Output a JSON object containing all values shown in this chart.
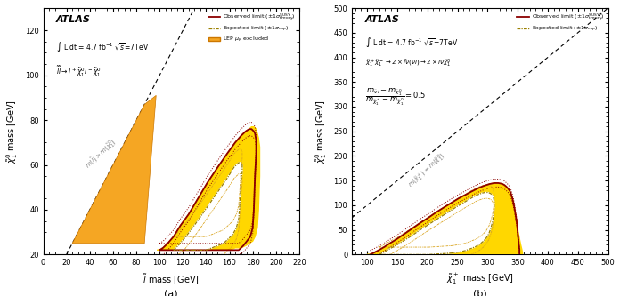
{
  "panel_a": {
    "xlim": [
      0,
      220
    ],
    "ylim": [
      20,
      130
    ],
    "xticks": [
      0,
      20,
      40,
      60,
      80,
      100,
      120,
      140,
      160,
      180,
      200,
      220
    ],
    "yticks": [
      20,
      40,
      60,
      80,
      100,
      120
    ],
    "xlabel": "$\\tilde{l}$ mass [GeV]",
    "ylabel": "$\\tilde{\\chi}_1^0$ mass [GeV]",
    "atlas_text": "ATLAS",
    "lumi_text": "$\\int$ L dt = 4.7 fb$^{-1}$ $\\sqrt{s}$=7TeV",
    "process_text": "$\\tilde{l}\\tilde{l} \\rightarrow l^+ \\tilde{\\chi}_1^0 l^- \\tilde{\\chi}_1^0$",
    "diagonal_label": "$m(\\tilde{l}) > m(\\tilde{\\chi}_1^0)$",
    "lep_color": "#F5A623",
    "obs_color": "#8B0000",
    "yellow_color": "#FFD700",
    "label_a": "(a)",
    "lep_x": [
      25,
      87,
      97,
      87,
      25
    ],
    "lep_y": [
      25,
      25,
      91,
      87,
      25
    ],
    "obs_x_top": [
      100,
      103,
      107,
      112,
      118,
      125,
      133,
      141,
      150,
      158,
      165,
      170,
      174,
      177,
      179,
      181,
      182,
      183,
      183,
      182
    ],
    "obs_y_top": [
      22,
      23,
      25,
      28,
      33,
      38,
      45,
      52,
      59,
      65,
      70,
      73,
      75,
      76,
      76,
      75,
      74,
      71,
      65,
      55
    ],
    "obs_x_right": [
      182,
      181,
      180,
      178,
      175,
      172,
      168
    ],
    "obs_y_right": [
      55,
      40,
      32,
      28,
      26,
      24,
      22
    ],
    "obs_x_bot": [
      168,
      160,
      152,
      144,
      136,
      128,
      120,
      112,
      104,
      100
    ],
    "obs_y_bot": [
      22,
      22,
      22,
      22,
      22,
      22,
      22,
      22,
      22,
      22
    ],
    "exp_x_top": [
      112,
      116,
      121,
      127,
      134,
      142,
      150,
      158,
      164,
      168,
      170,
      171,
      171,
      170,
      169
    ],
    "exp_y_top": [
      22,
      24,
      27,
      31,
      36,
      42,
      48,
      54,
      59,
      61,
      61,
      60,
      57,
      52,
      43
    ],
    "exp_x_right": [
      169,
      168,
      166,
      163,
      159,
      155,
      150,
      145,
      140,
      135,
      130,
      125,
      120,
      115,
      112
    ],
    "exp_y_right": [
      43,
      36,
      32,
      29,
      27,
      25,
      24,
      23,
      22,
      22,
      22,
      22,
      22,
      22,
      22
    ],
    "yellow_outer_x": [
      98,
      100,
      103,
      107,
      112,
      118,
      125,
      133,
      141,
      150,
      158,
      165,
      170,
      174,
      177,
      179,
      181,
      183,
      184,
      185,
      186,
      186,
      185,
      184,
      182,
      180,
      177,
      174,
      170,
      165,
      160,
      155,
      150,
      145,
      140,
      135,
      130,
      125,
      120,
      115,
      110,
      105,
      100,
      98
    ],
    "yellow_outer_y": [
      22,
      22,
      23,
      25,
      28,
      33,
      38,
      45,
      52,
      59,
      65,
      70,
      73,
      75,
      76,
      77,
      77,
      76,
      74,
      72,
      68,
      55,
      40,
      32,
      28,
      26,
      25,
      24,
      23,
      23,
      22,
      22,
      22,
      22,
      22,
      22,
      22,
      22,
      22,
      22,
      22,
      22,
      22,
      22
    ],
    "yellow_inner_x": [
      112,
      116,
      121,
      127,
      134,
      142,
      150,
      158,
      164,
      168,
      170,
      171,
      171,
      170,
      169,
      168,
      166,
      163,
      159,
      155,
      150,
      145,
      140,
      135,
      130,
      125,
      120,
      115,
      112
    ],
    "yellow_inner_y": [
      22,
      24,
      27,
      31,
      36,
      42,
      48,
      54,
      59,
      61,
      61,
      60,
      57,
      52,
      43,
      36,
      32,
      29,
      27,
      25,
      24,
      23,
      22,
      22,
      22,
      22,
      22,
      22,
      22
    ]
  },
  "panel_b": {
    "xlim": [
      75,
      500
    ],
    "ylim": [
      0,
      500
    ],
    "xticks": [
      100,
      150,
      200,
      250,
      300,
      350,
      400,
      450,
      500
    ],
    "yticks": [
      0,
      50,
      100,
      150,
      200,
      250,
      300,
      350,
      400,
      450,
      500
    ],
    "xlabel": "$\\tilde{\\chi}_1^+$ mass [GeV]",
    "ylabel": "$\\tilde{\\chi}_1^0$ mass [GeV]",
    "atlas_text": "ATLAS",
    "lumi_text": "$\\int$ L dt = 4.7 fb$^{-1}$ $\\sqrt{s}$=7TeV",
    "process_text": "$\\tilde{\\chi}_1^+ \\tilde{\\chi}_1^- \\rightarrow 2 \\times \\bar{l}\\nu(\\bar{\\nu}l) \\rightarrow 2 \\times l\\nu\\tilde{\\chi}_1^0$",
    "mass_ratio_text1": "$m_{\\tilde{\\nu}\\,l} - m_{\\tilde{\\chi}_1^0}$",
    "mass_ratio_text2": "$\\overline{m_{\\tilde{\\chi}_1^+} - m_{\\tilde{\\chi}_1^0}}$",
    "mass_ratio_eq": "= 0.5",
    "diagonal_label": "$m(\\tilde{\\chi}_1^+) = m(\\tilde{\\chi}_1^0)$",
    "obs_color": "#8B0000",
    "yellow_color": "#FFD700",
    "label_b": "(b)",
    "obs_x_top": [
      105,
      110,
      118,
      128,
      138,
      150,
      162,
      175,
      188,
      202,
      215,
      228,
      240,
      252,
      263,
      272,
      280,
      287,
      293,
      298,
      303,
      307,
      311,
      315,
      318,
      322,
      325,
      328,
      331,
      334,
      337,
      339,
      341,
      343,
      345,
      347,
      349,
      350,
      351,
      352,
      353,
      353
    ],
    "obs_y_top": [
      0,
      3,
      8,
      15,
      23,
      32,
      42,
      53,
      64,
      75,
      86,
      96,
      105,
      114,
      121,
      127,
      132,
      136,
      139,
      141,
      143,
      144,
      145,
      145,
      145,
      144,
      143,
      141,
      138,
      134,
      129,
      123,
      115,
      105,
      92,
      77,
      60,
      45,
      32,
      20,
      10,
      0
    ],
    "exp_x_top": [
      120,
      128,
      138,
      150,
      162,
      175,
      188,
      202,
      215,
      228,
      240,
      250,
      260,
      268,
      275,
      281,
      287,
      292,
      296,
      300,
      303,
      306,
      308,
      310,
      311,
      311
    ],
    "exp_y_top": [
      0,
      5,
      12,
      20,
      29,
      39,
      50,
      61,
      71,
      81,
      90,
      98,
      105,
      111,
      116,
      120,
      123,
      125,
      126,
      126,
      125,
      123,
      120,
      115,
      107,
      95
    ],
    "exp_x_right": [
      311,
      310,
      308,
      305,
      302,
      298,
      293,
      287,
      280,
      272,
      263,
      252,
      240,
      228,
      215,
      202,
      188,
      175,
      162,
      150,
      138,
      128,
      120
    ],
    "exp_y_right": [
      95,
      80,
      65,
      52,
      42,
      34,
      27,
      21,
      16,
      12,
      8,
      5,
      3,
      2,
      1,
      0,
      0,
      0,
      0,
      0,
      0,
      0,
      0
    ],
    "yellow_outer_x": [
      100,
      105,
      110,
      118,
      128,
      138,
      150,
      162,
      175,
      188,
      202,
      215,
      228,
      240,
      252,
      263,
      272,
      280,
      287,
      293,
      298,
      303,
      307,
      311,
      315,
      318,
      322,
      325,
      328,
      331,
      334,
      337,
      339,
      341,
      343,
      345,
      347,
      349,
      351,
      353,
      355,
      357,
      358,
      358,
      357,
      355,
      352,
      349,
      345,
      340,
      334,
      328,
      320,
      311,
      302,
      293,
      284,
      275,
      265,
      255,
      244,
      234,
      223,
      212,
      200,
      188,
      176,
      163,
      150,
      138,
      128,
      118,
      110,
      105,
      100
    ],
    "yellow_outer_y": [
      0,
      0,
      3,
      8,
      15,
      23,
      32,
      42,
      53,
      64,
      75,
      86,
      96,
      105,
      114,
      121,
      127,
      132,
      136,
      139,
      141,
      143,
      144,
      145,
      145,
      144,
      144,
      143,
      141,
      138,
      134,
      129,
      123,
      115,
      105,
      92,
      77,
      60,
      45,
      32,
      20,
      10,
      3,
      0,
      0,
      0,
      0,
      0,
      0,
      0,
      0,
      0,
      0,
      0,
      0,
      0,
      0,
      0,
      0,
      0,
      0,
      0,
      0,
      0,
      0,
      0,
      0,
      0,
      0,
      0,
      0,
      0,
      0,
      0,
      0
    ],
    "yellow_inner_x": [
      120,
      128,
      138,
      150,
      162,
      175,
      188,
      202,
      215,
      228,
      240,
      250,
      260,
      268,
      275,
      281,
      287,
      292,
      296,
      300,
      303,
      306,
      308,
      310,
      311,
      311,
      310,
      308,
      305,
      302,
      298,
      293,
      287,
      280,
      272,
      263,
      252,
      240,
      228,
      215,
      202,
      188,
      175,
      162,
      150,
      138,
      128,
      120
    ],
    "yellow_inner_y": [
      0,
      5,
      12,
      20,
      29,
      39,
      50,
      61,
      71,
      81,
      90,
      98,
      105,
      111,
      116,
      120,
      123,
      125,
      126,
      126,
      125,
      123,
      120,
      115,
      107,
      95,
      80,
      65,
      52,
      42,
      34,
      27,
      21,
      16,
      12,
      8,
      5,
      3,
      2,
      1,
      0,
      0,
      0,
      0,
      0,
      0,
      0,
      0
    ]
  }
}
